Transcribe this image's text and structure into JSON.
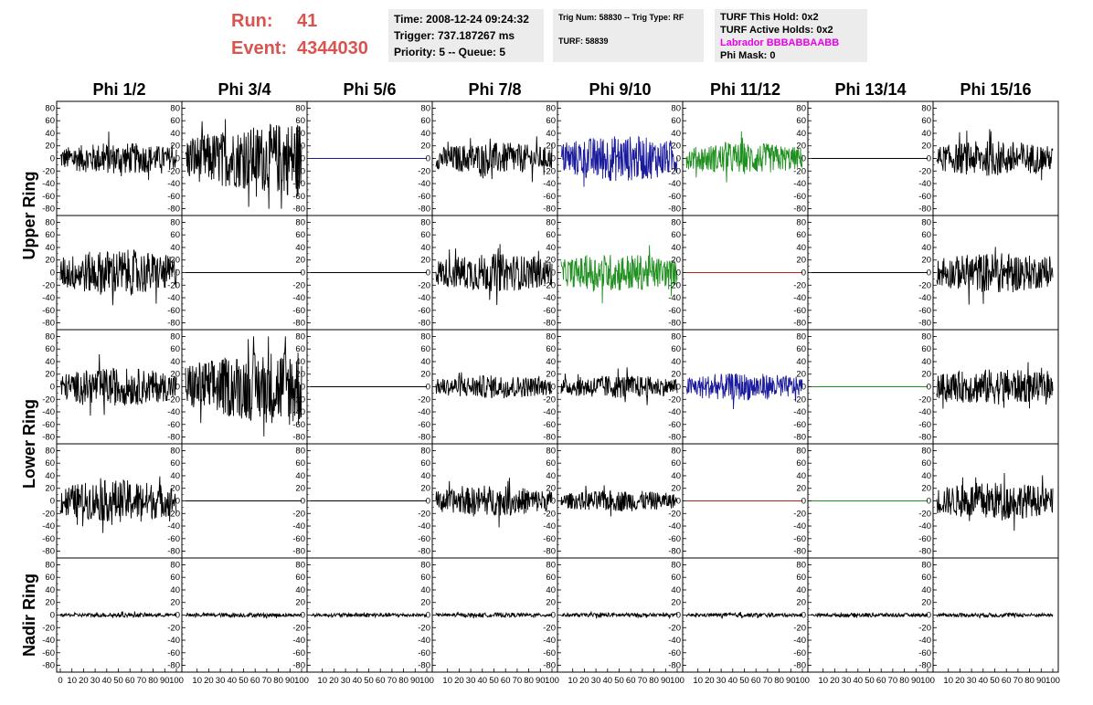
{
  "header": {
    "run_label": "Run:",
    "run_value": "41",
    "event_label": "Event:",
    "event_value": "4344030",
    "time": "Time: 2008-12-24 09:24:32",
    "trigger": "Trigger: 737.187267 ms",
    "priority": "Priority: 5 -- Queue: 5",
    "trig_num": "Trig Num: 58830 -- Trig Type: RF",
    "turf": "TURF: 58839",
    "turf_hold": "TURF This Hold: 0x2",
    "turf_active": "TURF Active Holds: 0x2",
    "labrador": "Labrador BBBABBAABB",
    "phi_mask": "Phi Mask: 0"
  },
  "colors": {
    "run_text": "#d9534f",
    "labrador_text": "#e800e8",
    "trace_black": "#000000",
    "trace_blue": "#1a1a9c",
    "trace_green": "#1f8f1f",
    "trace_red": "#c0201a"
  },
  "chart_data": {
    "type": "line",
    "columns": [
      "Phi 1/2",
      "Phi 3/4",
      "Phi 5/6",
      "Phi 7/8",
      "Phi 9/10",
      "Phi 11/12",
      "Phi 13/14",
      "Phi 15/16"
    ],
    "rows": [
      "Upper Ring",
      "Upper Ring",
      "Lower Ring",
      "Lower Ring",
      "Nadir Ring"
    ],
    "row_labels": [
      "Upper Ring",
      "Lower Ring",
      "Nadir Ring"
    ],
    "ylim": [
      -85,
      85
    ],
    "yticks": [
      80,
      60,
      40,
      20,
      0,
      -20,
      -40,
      -60,
      -80
    ],
    "xlim": [
      0,
      100
    ],
    "xticks": [
      0,
      10,
      20,
      30,
      40,
      50,
      60,
      70,
      80,
      90,
      100
    ],
    "grid": false,
    "panels": [
      [
        {
          "color": "black",
          "amp": 15
        },
        {
          "color": "black",
          "amp": 45
        },
        {
          "color": "blue",
          "amp": 0
        },
        {
          "color": "black",
          "amp": 15
        },
        {
          "color": "blue",
          "amp": 22
        },
        {
          "color": "green",
          "amp": 15
        },
        {
          "color": "black",
          "amp": 0
        },
        {
          "color": "black",
          "amp": 17
        }
      ],
      [
        {
          "color": "black",
          "amp": 22
        },
        {
          "color": "black",
          "amp": 0
        },
        {
          "color": "black",
          "amp": 0
        },
        {
          "color": "black",
          "amp": 18
        },
        {
          "color": "green",
          "amp": 18
        },
        {
          "color": "red",
          "amp": 0
        },
        {
          "color": "black",
          "amp": 0
        },
        {
          "color": "black",
          "amp": 19
        }
      ],
      [
        {
          "color": "black",
          "amp": 18
        },
        {
          "color": "black",
          "amp": 48
        },
        {
          "color": "black",
          "amp": 0
        },
        {
          "color": "black",
          "amp": 11
        },
        {
          "color": "black",
          "amp": 11
        },
        {
          "color": "blue",
          "amp": 13
        },
        {
          "color": "green",
          "amp": 0
        },
        {
          "color": "black",
          "amp": 17
        }
      ],
      [
        {
          "color": "black",
          "amp": 20
        },
        {
          "color": "black",
          "amp": 0
        },
        {
          "color": "black",
          "amp": 0
        },
        {
          "color": "black",
          "amp": 14
        },
        {
          "color": "black",
          "amp": 10
        },
        {
          "color": "red",
          "amp": 0
        },
        {
          "color": "green",
          "amp": 0
        },
        {
          "color": "black",
          "amp": 18
        }
      ],
      [
        {
          "color": "black",
          "amp": 2
        },
        {
          "color": "black",
          "amp": 2
        },
        {
          "color": "black",
          "amp": 2
        },
        {
          "color": "black",
          "amp": 2
        },
        {
          "color": "black",
          "amp": 2
        },
        {
          "color": "black",
          "amp": 2
        },
        {
          "color": "black",
          "amp": 2
        },
        {
          "color": "black",
          "amp": 2
        }
      ]
    ]
  }
}
